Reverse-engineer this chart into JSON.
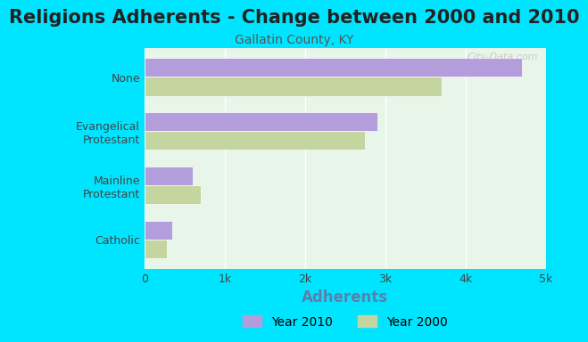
{
  "title": "Religions Adherents - Change between 2000 and 2010",
  "subtitle": "Gallatin County, KY",
  "xlabel": "Adherents",
  "categories": [
    "Catholic",
    "Mainline\nProtestant",
    "Evangelical\nProtestant",
    "None"
  ],
  "values_2010": [
    350,
    600,
    2900,
    4700
  ],
  "values_2000": [
    280,
    700,
    2750,
    3700
  ],
  "color_2010": "#b39ddb",
  "color_2000": "#c5d5a0",
  "background_outer": "#00e5ff",
  "background_inner": "#e8f5e9",
  "xlim": [
    0,
    5000
  ],
  "xtick_labels": [
    "0",
    "1k",
    "2k",
    "3k",
    "4k",
    "5k"
  ],
  "xtick_values": [
    0,
    1000,
    2000,
    3000,
    4000,
    5000
  ],
  "title_fontsize": 15,
  "subtitle_fontsize": 10,
  "xlabel_fontsize": 12,
  "label_fontsize": 9,
  "legend_label_2010": "Year 2010",
  "legend_label_2000": "Year 2000",
  "watermark": "City-Data.com"
}
